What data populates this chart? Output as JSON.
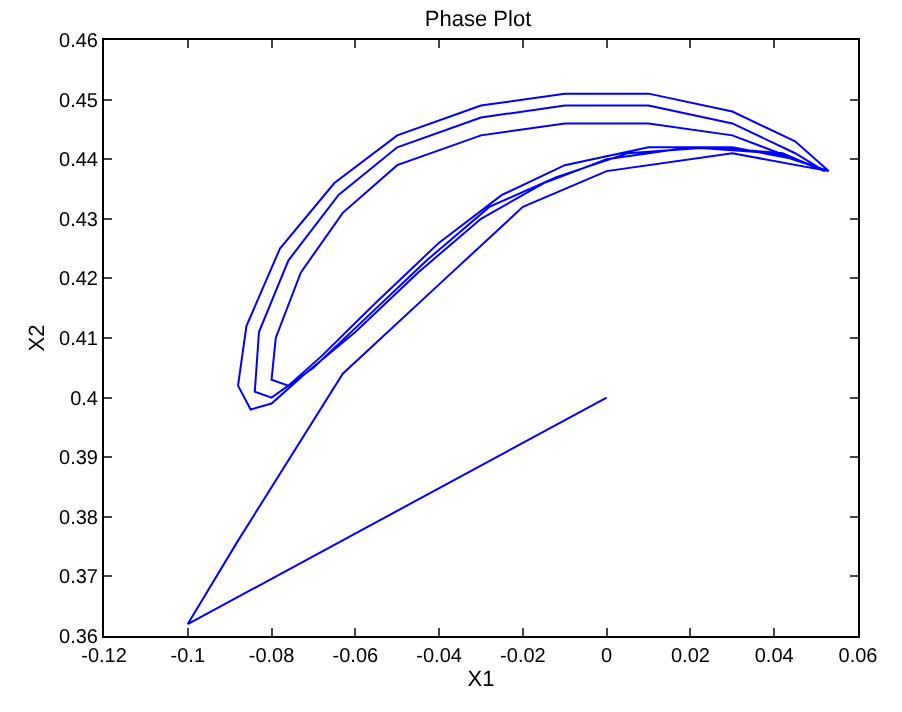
{
  "chart_data": {
    "type": "line",
    "title": "Phase Plot",
    "xlabel": "X1",
    "ylabel": "X2",
    "xlim": [
      -0.12,
      0.06
    ],
    "xticks": [
      -0.12,
      -0.1,
      -0.08,
      -0.06,
      -0.04,
      -0.02,
      0,
      0.02,
      0.04,
      0.06
    ],
    "ylim": [
      0.36,
      0.46
    ],
    "yticks": [
      0.36,
      0.37,
      0.38,
      0.39,
      0.4,
      0.41,
      0.42,
      0.43,
      0.44,
      0.45,
      0.46
    ],
    "marker": "none",
    "line_style": "solid",
    "series": [
      {
        "color": "#0000ff",
        "x": [
          0,
          -0.1,
          -0.088,
          -0.063,
          -0.04,
          -0.02,
          0.0,
          0.03,
          0.053,
          0.045,
          0.03,
          0.01,
          -0.01,
          -0.03,
          -0.05,
          -0.065,
          -0.078,
          -0.086,
          -0.088,
          -0.085,
          -0.08,
          -0.072,
          -0.06,
          -0.045,
          -0.03,
          -0.015,
          0,
          0.02,
          0.04,
          0.053,
          0.045,
          0.03,
          0.01,
          -0.01,
          -0.03,
          -0.05,
          -0.063,
          -0.073,
          -0.079,
          -0.08,
          -0.076,
          -0.068,
          -0.055,
          -0.04,
          -0.025,
          -0.01,
          0.01,
          0.03,
          0.045,
          0.052,
          0.045,
          0.03,
          0.01,
          -0.01,
          -0.03,
          -0.05,
          -0.064,
          -0.076,
          -0.083,
          -0.084,
          -0.08,
          -0.07,
          -0.058,
          -0.043,
          -0.028,
          -0.012,
          0.005,
          0.025,
          0.042,
          0.052
        ],
        "values": [
          0.4,
          0.362,
          0.376,
          0.404,
          0.419,
          0.432,
          0.438,
          0.441,
          0.438,
          0.443,
          0.448,
          0.451,
          0.451,
          0.449,
          0.444,
          0.436,
          0.425,
          0.412,
          0.402,
          0.398,
          0.399,
          0.404,
          0.411,
          0.421,
          0.43,
          0.436,
          0.44,
          0.442,
          0.441,
          0.438,
          0.44,
          0.444,
          0.446,
          0.446,
          0.444,
          0.439,
          0.431,
          0.421,
          0.41,
          0.403,
          0.402,
          0.407,
          0.416,
          0.426,
          0.434,
          0.439,
          0.442,
          0.442,
          0.44,
          0.438,
          0.441,
          0.446,
          0.449,
          0.449,
          0.447,
          0.442,
          0.434,
          0.423,
          0.411,
          0.401,
          0.4,
          0.405,
          0.413,
          0.423,
          0.432,
          0.437,
          0.441,
          0.442,
          0.441,
          0.438
        ]
      }
    ]
  }
}
